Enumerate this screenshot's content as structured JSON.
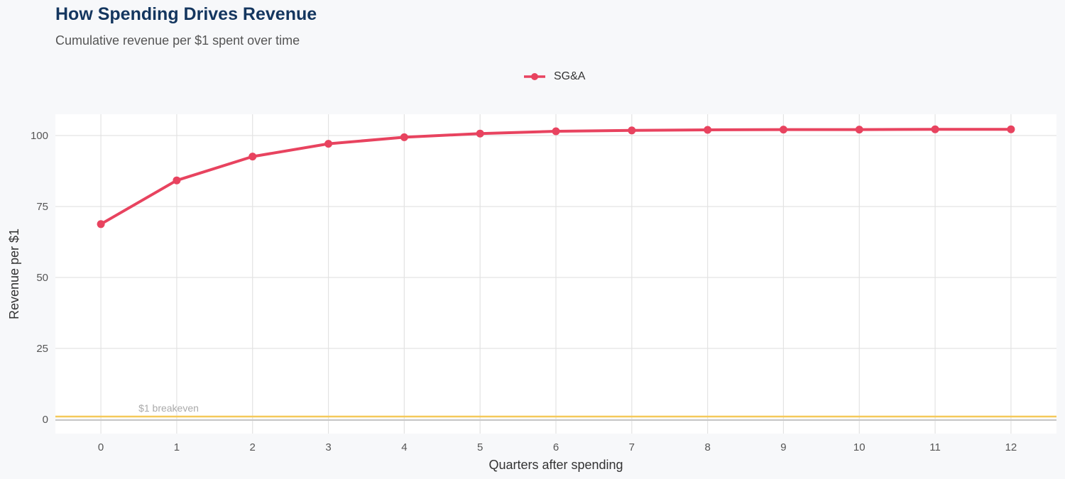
{
  "title": "How Spending Drives Revenue",
  "subtitle": "Cumulative revenue per $1 spent over time",
  "chart_data": {
    "type": "line",
    "title": "How Spending Drives Revenue",
    "subtitle": "Cumulative revenue per $1 spent over time",
    "xlabel": "Quarters after spending",
    "ylabel": "Revenue per $1",
    "x": [
      0,
      1,
      2,
      3,
      4,
      5,
      6,
      7,
      8,
      9,
      10,
      11,
      12
    ],
    "series": [
      {
        "name": "SG&A",
        "color": "#e8435f",
        "values": [
          68.8,
          84.2,
          92.6,
          97.1,
          99.4,
          100.7,
          101.5,
          101.8,
          102.0,
          102.1,
          102.1,
          102.2,
          102.2
        ]
      }
    ],
    "xlim": [
      -0.6,
      12.6
    ],
    "ylim": [
      -5,
      107.5
    ],
    "yticks": [
      0,
      25,
      50,
      75,
      100
    ],
    "xticks": [
      0,
      1,
      2,
      3,
      4,
      5,
      6,
      7,
      8,
      9,
      10,
      11,
      12
    ],
    "grid": true,
    "legend": "top",
    "reference_line": {
      "y": 1,
      "label": "$1 breakeven",
      "color": "#f5c95a"
    },
    "zero_line_color": "#c8c8c8"
  }
}
